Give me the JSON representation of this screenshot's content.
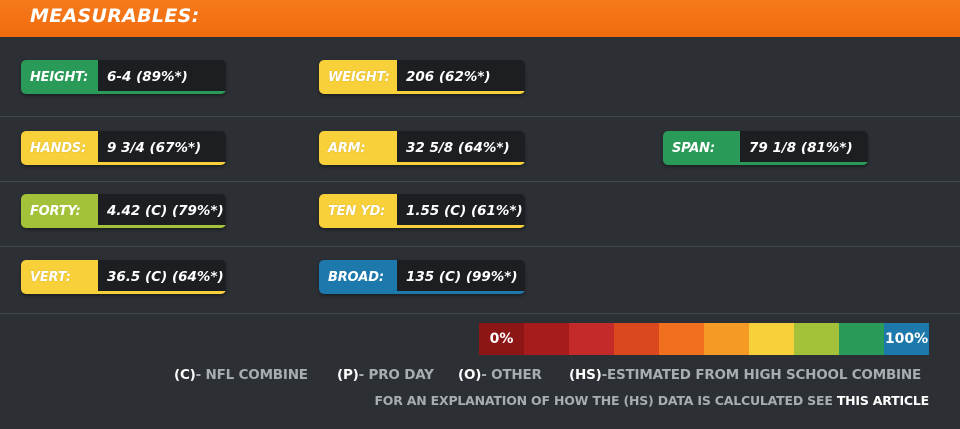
{
  "header": {
    "title": "MEASURABLES:",
    "color": "#f26b0e"
  },
  "rows": [
    [
      {
        "label": "HEIGHT:",
        "value": "6-4 (89%*)",
        "color": "#2a9a58"
      },
      {
        "label": "WEIGHT:",
        "value": "206 (62%*)",
        "color": "#f7d03a"
      }
    ],
    [
      {
        "label": "HANDS:",
        "value": "9 3/4 (67%*)",
        "color": "#f7d03a"
      },
      {
        "label": "ARM:",
        "value": "32 5/8 (64%*)",
        "color": "#f7d03a"
      },
      {
        "label": "SPAN:",
        "value": "79 1/8 (81%*)",
        "color": "#2a9a58"
      }
    ],
    [
      {
        "label": "FORTY:",
        "value": "4.42 (C) (79%*)",
        "color": "#a3c23a"
      },
      {
        "label": "TEN YD:",
        "value": "1.55 (C) (61%*)",
        "color": "#f7d03a"
      }
    ],
    [
      {
        "label": "VERT:",
        "value": "36.5 (C) (64%*)",
        "color": "#f7d03a"
      },
      {
        "label": "BROAD:",
        "value": "135 (C) (99%*)",
        "color": "#1d78ac"
      }
    ]
  ],
  "scale": {
    "min_label": "0%",
    "max_label": "100%",
    "colors": [
      "#8c1616",
      "#a61c1c",
      "#c42a2a",
      "#d9491d",
      "#f07020",
      "#f59a25",
      "#f7d03a",
      "#a3c23a",
      "#2a9a58",
      "#1d78ac"
    ]
  },
  "legend": [
    {
      "code": "(C)",
      "text": "- NFL COMBINE"
    },
    {
      "code": "(P)",
      "text": "- PRO DAY"
    },
    {
      "code": "(O)",
      "text": "- OTHER"
    },
    {
      "code": "(HS)",
      "text": "-ESTIMATED FROM HIGH SCHOOL COMBINE"
    }
  ],
  "note": {
    "text": "FOR AN EXPLANATION OF HOW THE (HS) DATA IS CALCULATED SEE ",
    "link": "THIS ARTICLE"
  }
}
